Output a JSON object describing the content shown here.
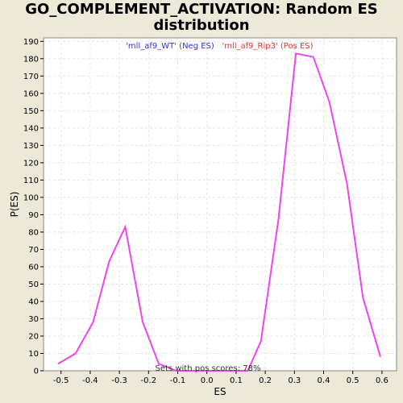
{
  "chart_data": {
    "type": "line",
    "title_line1": "GO_COMPLEMENT_ACTIVATION: Random ES",
    "title_line2": "distribution",
    "xlabel": "ES",
    "ylabel": "P(ES)",
    "xlim": [
      -0.56,
      0.65
    ],
    "ylim": [
      0,
      192
    ],
    "x_ticks": [
      -0.5,
      -0.4,
      -0.3,
      -0.2,
      -0.1,
      0.0,
      0.1,
      0.2,
      0.3,
      0.4,
      0.5,
      0.6
    ],
    "x_tick_labels": [
      "-0.5",
      "-0.4",
      "-0.3",
      "-0.2",
      "-0.1",
      "0.0",
      "0.1",
      "0.2",
      "0.3",
      "0.4",
      "0.5",
      "0.6"
    ],
    "y_ticks": [
      0,
      10,
      20,
      30,
      40,
      50,
      60,
      70,
      80,
      90,
      100,
      110,
      120,
      130,
      140,
      150,
      160,
      170,
      180,
      190
    ],
    "grid": true,
    "legend": [
      {
        "label": "'mll_af9_WT' (Neg ES)",
        "color": "#3333cc"
      },
      {
        "label": "'mll_af9_Rip3' (Pos ES)",
        "color": "#dd3333"
      }
    ],
    "legend_placement": "top-center",
    "annotation": "Sets with pos scores: 78%",
    "line_color": "#ee44ee",
    "series": [
      {
        "x": [
          -0.51,
          -0.45,
          -0.39,
          -0.335,
          -0.28,
          -0.22,
          -0.165,
          -0.105,
          -0.05,
          0.0,
          0.05,
          0.1,
          0.14,
          0.185,
          0.245,
          0.305,
          0.365,
          0.42,
          0.48,
          0.535,
          0.595
        ],
        "y": [
          4,
          10,
          28,
          63,
          83,
          28,
          4,
          0,
          0,
          0,
          0,
          0,
          0,
          17,
          87,
          183,
          181,
          155,
          108,
          42,
          8
        ]
      }
    ]
  }
}
